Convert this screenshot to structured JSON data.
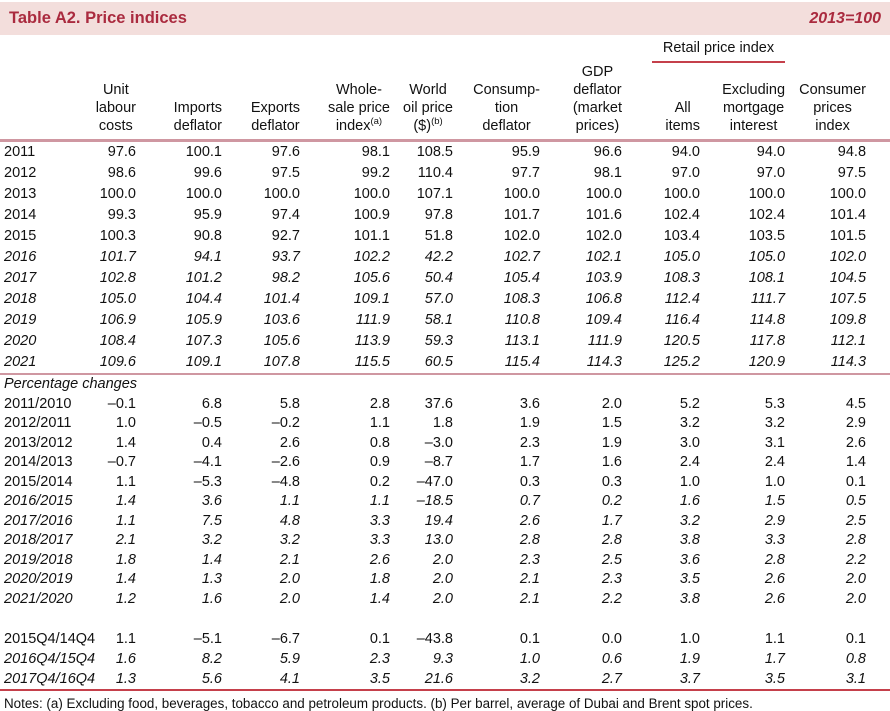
{
  "colors": {
    "accent": "#aa2b3f",
    "title_bg": "#f3dedc",
    "rule_rose": "#cf97a1",
    "rule_crimson": "#c5404b",
    "text": "#111111"
  },
  "title_bar": {
    "title": "Table A2. Price indices",
    "scale_note": "2013=100"
  },
  "table": {
    "spanner_label": "Retail price index",
    "columns": [
      {
        "name": "unit-labour-costs",
        "lines": [
          "Unit",
          "labour",
          "costs"
        ]
      },
      {
        "name": "imports-deflator",
        "lines": [
          "Imports",
          "deflator"
        ]
      },
      {
        "name": "exports-deflator",
        "lines": [
          "Exports",
          "deflator"
        ]
      },
      {
        "name": "wholesale-price-index",
        "lines": [
          "Whole-",
          "sale price",
          "index"
        ],
        "sup": "(a)"
      },
      {
        "name": "world-oil-price",
        "lines": [
          "World",
          "oil price",
          "($)"
        ],
        "sup": "(b)"
      },
      {
        "name": "consumption-deflator",
        "lines": [
          "Consump-",
          "tion",
          "deflator"
        ]
      },
      {
        "name": "gdp-deflator-market-prices",
        "lines": [
          "GDP",
          "deflator",
          "(market",
          "prices)"
        ]
      },
      {
        "name": "rpi-all-items",
        "lines": [
          "All",
          "items"
        ]
      },
      {
        "name": "rpi-excluding-mortgage-interest",
        "lines": [
          "Excluding",
          "mortgage",
          "interest"
        ]
      },
      {
        "name": "consumer-prices-index",
        "lines": [
          "Consumer",
          "prices",
          "index"
        ]
      }
    ],
    "index_rows": [
      {
        "label": "2011",
        "italic": false,
        "values": [
          "97.6",
          "100.1",
          "97.6",
          "98.1",
          "108.5",
          "95.9",
          "96.6",
          "94.0",
          "94.0",
          "94.8"
        ]
      },
      {
        "label": "2012",
        "italic": false,
        "values": [
          "98.6",
          "99.6",
          "97.5",
          "99.2",
          "110.4",
          "97.7",
          "98.1",
          "97.0",
          "97.0",
          "97.5"
        ]
      },
      {
        "label": "2013",
        "italic": false,
        "values": [
          "100.0",
          "100.0",
          "100.0",
          "100.0",
          "107.1",
          "100.0",
          "100.0",
          "100.0",
          "100.0",
          "100.0"
        ]
      },
      {
        "label": "2014",
        "italic": false,
        "values": [
          "99.3",
          "95.9",
          "97.4",
          "100.9",
          "97.8",
          "101.7",
          "101.6",
          "102.4",
          "102.4",
          "101.4"
        ]
      },
      {
        "label": "2015",
        "italic": false,
        "values": [
          "100.3",
          "90.8",
          "92.7",
          "101.1",
          "51.8",
          "102.0",
          "102.0",
          "103.4",
          "103.5",
          "101.5"
        ]
      },
      {
        "label": "2016",
        "italic": true,
        "values": [
          "101.7",
          "94.1",
          "93.7",
          "102.2",
          "42.2",
          "102.7",
          "102.1",
          "105.0",
          "105.0",
          "102.0"
        ]
      },
      {
        "label": "2017",
        "italic": true,
        "values": [
          "102.8",
          "101.2",
          "98.2",
          "105.6",
          "50.4",
          "105.4",
          "103.9",
          "108.3",
          "108.1",
          "104.5"
        ]
      },
      {
        "label": "2018",
        "italic": true,
        "values": [
          "105.0",
          "104.4",
          "101.4",
          "109.1",
          "57.0",
          "108.3",
          "106.8",
          "112.4",
          "111.7",
          "107.5"
        ]
      },
      {
        "label": "2019",
        "italic": true,
        "values": [
          "106.9",
          "105.9",
          "103.6",
          "111.9",
          "58.1",
          "110.8",
          "109.4",
          "116.4",
          "114.8",
          "109.8"
        ]
      },
      {
        "label": "2020",
        "italic": true,
        "values": [
          "108.4",
          "107.3",
          "105.6",
          "113.9",
          "59.3",
          "113.1",
          "111.9",
          "120.5",
          "117.8",
          "112.1"
        ]
      },
      {
        "label": "2021",
        "italic": true,
        "values": [
          "109.6",
          "109.1",
          "107.8",
          "115.5",
          "60.5",
          "115.4",
          "114.3",
          "125.2",
          "120.9",
          "114.3"
        ]
      }
    ],
    "section_label": "Percentage changes",
    "pct_rows": [
      {
        "label": "2011/2010",
        "italic": false,
        "values": [
          "–0.1",
          "6.8",
          "5.8",
          "2.8",
          "37.6",
          "3.6",
          "2.0",
          "5.2",
          "5.3",
          "4.5"
        ]
      },
      {
        "label": "2012/2011",
        "italic": false,
        "values": [
          "1.0",
          "–0.5",
          "–0.2",
          "1.1",
          "1.8",
          "1.9",
          "1.5",
          "3.2",
          "3.2",
          "2.9"
        ]
      },
      {
        "label": "2013/2012",
        "italic": false,
        "values": [
          "1.4",
          "0.4",
          "2.6",
          "0.8",
          "–3.0",
          "2.3",
          "1.9",
          "3.0",
          "3.1",
          "2.6"
        ]
      },
      {
        "label": "2014/2013",
        "italic": false,
        "values": [
          "–0.7",
          "–4.1",
          "–2.6",
          "0.9",
          "–8.7",
          "1.7",
          "1.6",
          "2.4",
          "2.4",
          "1.4"
        ]
      },
      {
        "label": "2015/2014",
        "italic": false,
        "values": [
          "1.1",
          "–5.3",
          "–4.8",
          "0.2",
          "–47.0",
          "0.3",
          "0.3",
          "1.0",
          "1.0",
          "0.1"
        ]
      },
      {
        "label": "2016/2015",
        "italic": true,
        "values": [
          "1.4",
          "3.6",
          "1.1",
          "1.1",
          "–18.5",
          "0.7",
          "0.2",
          "1.6",
          "1.5",
          "0.5"
        ]
      },
      {
        "label": "2017/2016",
        "italic": true,
        "values": [
          "1.1",
          "7.5",
          "4.8",
          "3.3",
          "19.4",
          "2.6",
          "1.7",
          "3.2",
          "2.9",
          "2.5"
        ]
      },
      {
        "label": "2018/2017",
        "italic": true,
        "values": [
          "2.1",
          "3.2",
          "3.2",
          "3.3",
          "13.0",
          "2.8",
          "2.8",
          "3.8",
          "3.3",
          "2.8"
        ]
      },
      {
        "label": "2019/2018",
        "italic": true,
        "values": [
          "1.8",
          "1.4",
          "2.1",
          "2.6",
          "2.0",
          "2.3",
          "2.5",
          "3.6",
          "2.8",
          "2.2"
        ]
      },
      {
        "label": "2020/2019",
        "italic": true,
        "values": [
          "1.4",
          "1.3",
          "2.0",
          "1.8",
          "2.0",
          "2.1",
          "2.3",
          "3.5",
          "2.6",
          "2.0"
        ]
      },
      {
        "label": "2021/2020",
        "italic": true,
        "values": [
          "1.2",
          "1.6",
          "2.0",
          "1.4",
          "2.0",
          "2.1",
          "2.2",
          "3.8",
          "2.6",
          "2.0"
        ]
      }
    ],
    "q4_rows": [
      {
        "label": "2015Q4/14Q4",
        "italic": false,
        "values": [
          "1.1",
          "–5.1",
          "–6.7",
          "0.1",
          "–43.8",
          "0.1",
          "0.0",
          "1.0",
          "1.1",
          "0.1"
        ]
      },
      {
        "label": "2016Q4/15Q4",
        "italic": true,
        "values": [
          "1.6",
          "8.2",
          "5.9",
          "2.3",
          "9.3",
          "1.0",
          "0.6",
          "1.9",
          "1.7",
          "0.8"
        ]
      },
      {
        "label": "2017Q4/16Q4",
        "italic": true,
        "values": [
          "1.3",
          "5.6",
          "4.1",
          "3.5",
          "21.6",
          "3.2",
          "2.7",
          "3.7",
          "3.5",
          "3.1"
        ]
      }
    ]
  },
  "notes": "Notes: (a) Excluding food, beverages, tobacco and petroleum products. (b) Per barrel, average of Dubai and Brent spot prices."
}
